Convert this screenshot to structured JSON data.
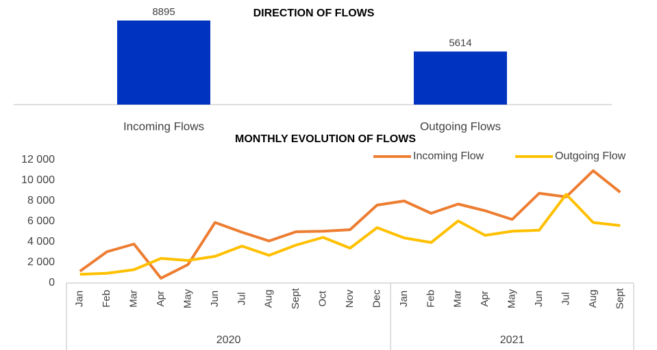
{
  "chart_data": [
    {
      "type": "bar",
      "title": "DIRECTION OF FLOWS",
      "categories": [
        "Incoming Flows",
        "Outgoing Flows"
      ],
      "values": [
        8895,
        5614
      ],
      "color": "#0033c0"
    },
    {
      "type": "line",
      "title": "MONTHLY EVOLUTION OF FLOWS",
      "categories": [
        "Jan",
        "Feb",
        "Mar",
        "Apr",
        "May",
        "Jun",
        "Jul",
        "Aug",
        "Sept",
        "Oct",
        "Nov",
        "Dec",
        "Jan",
        "Feb",
        "Mar",
        "Apr",
        "May",
        "Jun",
        "Jul",
        "Aug",
        "Sept"
      ],
      "groups": [
        {
          "label": "2020",
          "span": 12
        },
        {
          "label": "2021",
          "span": 9
        }
      ],
      "series": [
        {
          "name": "Incoming Flow",
          "color": "#ed7d31",
          "values": [
            1150,
            3050,
            3800,
            470,
            1800,
            5900,
            4950,
            4100,
            5000,
            5050,
            5200,
            7600,
            8000,
            6800,
            7700,
            7050,
            6200,
            8750,
            8400,
            10950,
            8850
          ]
        },
        {
          "name": "Outgoing Flow",
          "color": "#ffc000",
          "values": [
            850,
            950,
            1300,
            2400,
            2200,
            2600,
            3600,
            2700,
            3700,
            4450,
            3400,
            5400,
            4400,
            3950,
            6050,
            4650,
            5050,
            5150,
            8650,
            5900,
            5600
          ]
        }
      ],
      "ylim": [
        0,
        12000
      ],
      "yticks": [
        0,
        {
          "value": 2000,
          "label": "2 000"
        },
        {
          "value": 4000,
          "label": "4 000"
        },
        {
          "value": 6000,
          "label": "6 000"
        },
        {
          "value": 8000,
          "label": "8 000"
        },
        {
          "value": 10000,
          "label": "10 000"
        },
        {
          "value": 12000,
          "label": "12 000"
        }
      ],
      "legend": "top-right"
    }
  ]
}
